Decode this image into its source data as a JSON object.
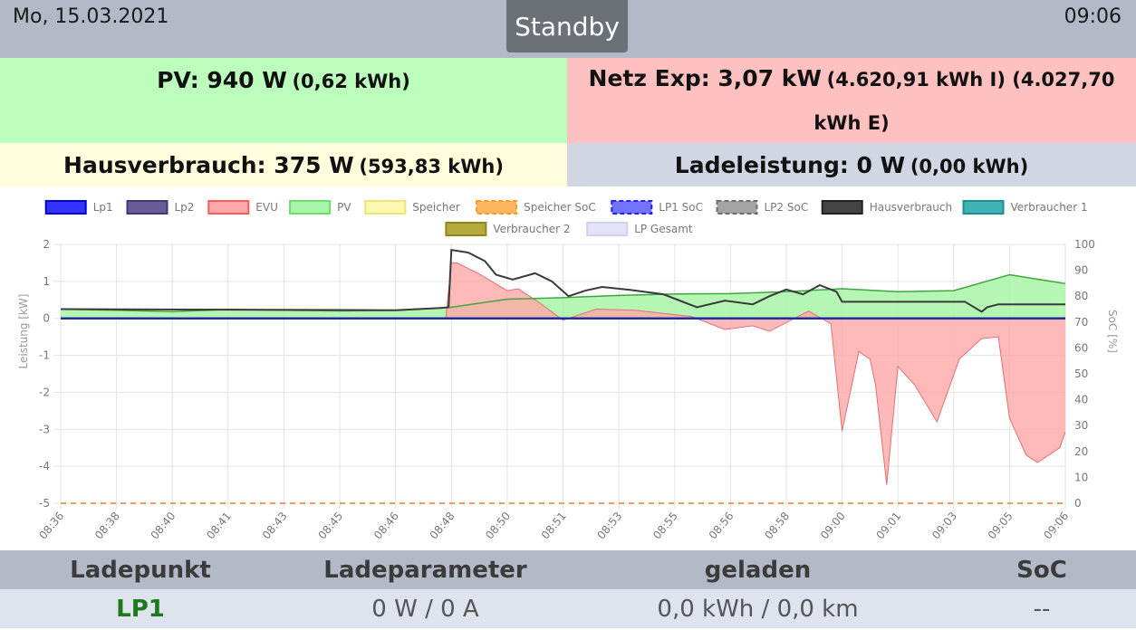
{
  "header": {
    "date": "Mo, 15.03.2021",
    "status": "Standby",
    "time": "09:06"
  },
  "tiles": {
    "pv": {
      "label": "PV: 940 W",
      "detail": "(0,62 kWh)"
    },
    "grid": {
      "label": "Netz Exp: 3,07 kW",
      "detail": "(4.620,91 kWh I) (4.027,70 kWh E)"
    },
    "house": {
      "label": "Hausverbrauch: 375 W",
      "detail": "(593,83 kWh)"
    },
    "charge": {
      "label": "Ladeleistung: 0 W",
      "detail": "(0,00 kWh)"
    }
  },
  "colors": {
    "pv": "#bcfebc",
    "grid": "#ffc0c0",
    "house": "#fffddc",
    "charge": "#d2d6e3",
    "header": "#b3b9c7",
    "status": "#6c7077"
  },
  "chart_data": {
    "type": "line",
    "ylabel": "Leistung [kW]",
    "y2label": "SoC [%]",
    "ylim": [
      -5,
      2
    ],
    "y2lim": [
      0,
      100
    ],
    "y_ticks": [
      2,
      1,
      0,
      -1,
      -2,
      -3,
      -4,
      -5
    ],
    "y_tick_labels": [
      "2",
      "1",
      "0",
      "-1",
      "-2",
      "-3",
      "-4",
      "-5"
    ],
    "y2_ticks": [
      100,
      90,
      80,
      70,
      60,
      50,
      40,
      30,
      20,
      10,
      0
    ],
    "x_tick_labels": [
      "08:36",
      "08:38",
      "08:40",
      "08:41",
      "08:43",
      "08:45",
      "08:46",
      "08:48",
      "08:50",
      "08:51",
      "08:53",
      "08:55",
      "08:56",
      "08:58",
      "09:00",
      "09:01",
      "09:03",
      "09:05",
      "09:06"
    ],
    "grid": true,
    "legend_position": "top",
    "legend": [
      {
        "name": "Lp1",
        "color": "#3333ff",
        "border": "#0000cc",
        "dashed": false
      },
      {
        "name": "Lp2",
        "color": "#6a5a9a",
        "border": "#433776",
        "dashed": false
      },
      {
        "name": "EVU",
        "color": "#ffa8a8",
        "border": "#ff5c5c",
        "dashed": false
      },
      {
        "name": "PV",
        "color": "#a8f5a8",
        "border": "#6ddf6d",
        "dashed": false
      },
      {
        "name": "Speicher",
        "color": "#fdf8b0",
        "border": "#f2e27a",
        "dashed": false
      },
      {
        "name": "Speicher SoC",
        "color": "#ffb560",
        "border": "#ff9a1e",
        "dashed": true
      },
      {
        "name": "LP1 SoC",
        "color": "#7373ff",
        "border": "#1f1fff",
        "dashed": true
      },
      {
        "name": "LP2 SoC",
        "color": "#a4a4a4",
        "border": "#6c6c6c",
        "dashed": true
      },
      {
        "name": "Hausverbrauch",
        "color": "#444444",
        "border": "#222222",
        "dashed": false
      },
      {
        "name": "Verbraucher 1",
        "color": "#3fb3b3",
        "border": "#1c8f8f",
        "dashed": false
      },
      {
        "name": "Verbraucher 2",
        "color": "#b5ab3d",
        "border": "#8f8620",
        "dashed": false
      },
      {
        "name": "LP Gesamt",
        "color": "#e2e2fb",
        "border": "#cfcff2",
        "dashed": false
      }
    ],
    "series": [
      {
        "name": "PV",
        "x": [
          0,
          1,
          2,
          3,
          4,
          5,
          6,
          7,
          8,
          9,
          10,
          11,
          12,
          13,
          14,
          15,
          16,
          17,
          18
        ],
        "values": [
          0.25,
          0.22,
          0.18,
          0.24,
          0.22,
          0.2,
          0.22,
          0.3,
          0.52,
          0.56,
          0.62,
          0.66,
          0.67,
          0.72,
          0.8,
          0.72,
          0.75,
          1.18,
          0.94
        ]
      },
      {
        "name": "EVU",
        "x": [
          0,
          6.9,
          7.0,
          7.1,
          7.5,
          8.0,
          8.2,
          8.6,
          9.0,
          9.2,
          9.6,
          10.3,
          11.3,
          11.9,
          12.4,
          12.7,
          13.4,
          13.8,
          14.0,
          14.3,
          14.5,
          14.6,
          14.8,
          15.0,
          15.3,
          15.7,
          16.1,
          16.5,
          16.8,
          17.0,
          17.3,
          17.5,
          17.9,
          18.0
        ],
        "values": [
          0,
          0,
          1.5,
          1.5,
          1.2,
          0.75,
          0.8,
          0.4,
          -0.05,
          0.05,
          0.25,
          0.22,
          0.05,
          -0.3,
          -0.2,
          -0.35,
          0.2,
          -0.15,
          -3.05,
          -0.9,
          -1.1,
          -1.8,
          -4.5,
          -1.3,
          -1.8,
          -2.8,
          -1.1,
          -0.55,
          -0.5,
          -2.7,
          -3.7,
          -3.9,
          -3.5,
          -3.07
        ]
      },
      {
        "name": "Hausverbrauch",
        "x": [
          0,
          6.0,
          6.8,
          6.95,
          7.0,
          7.3,
          7.6,
          7.8,
          8.1,
          8.5,
          8.8,
          9.1,
          9.4,
          9.7,
          10.2,
          10.8,
          11.4,
          11.9,
          12.4,
          12.7,
          13.0,
          13.3,
          13.6,
          13.9,
          14.0,
          15.0,
          16.0,
          16.2,
          16.5,
          16.6,
          16.8,
          17.0,
          17.3,
          17.6,
          18.0
        ],
        "values": [
          0.25,
          0.22,
          0.28,
          0.3,
          1.85,
          1.78,
          1.55,
          1.18,
          1.05,
          1.22,
          1.0,
          0.6,
          0.75,
          0.85,
          0.77,
          0.65,
          0.3,
          0.48,
          0.38,
          0.6,
          0.78,
          0.65,
          0.9,
          0.72,
          0.45,
          0.45,
          0.45,
          0.45,
          0.18,
          0.3,
          0.38,
          0.38,
          0.38,
          0.38,
          0.38
        ]
      },
      {
        "name": "Lp1",
        "x": [
          0,
          18
        ],
        "values": [
          0,
          0
        ]
      }
    ]
  },
  "table": {
    "headers": [
      "Ladepunkt",
      "Ladeparameter",
      "geladen",
      "SoC"
    ],
    "rows": [
      {
        "lp": "LP1",
        "param": "0 W / 0 A",
        "charged": "0,0 kWh / 0,0 km",
        "soc": "--"
      }
    ]
  }
}
